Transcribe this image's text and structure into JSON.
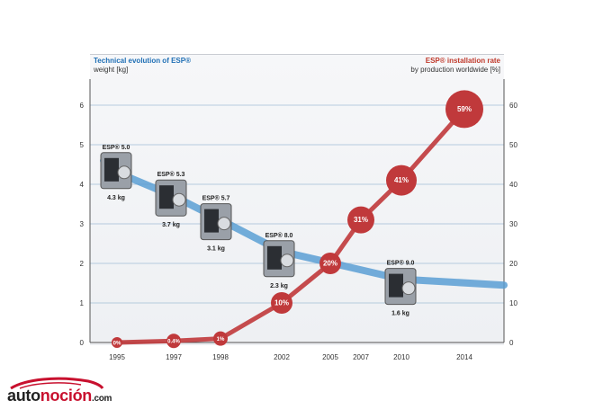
{
  "chart_data": {
    "type": "line",
    "title_left": "Technical evolution of ESP®",
    "ylabel_left": "weight [kg]",
    "title_right": "ESP® installation rate",
    "ylabel_right": "by production worldwide [%]",
    "x": [
      "1995",
      "1997",
      "1998",
      "2002",
      "2005",
      "2007",
      "2010",
      "2014"
    ],
    "ylim_left": [
      0,
      6
    ],
    "yticks_left": [
      "0",
      "1",
      "2",
      "3",
      "4",
      "5",
      "6"
    ],
    "ylim_right": [
      0,
      60
    ],
    "yticks_right": [
      "0",
      "10",
      "20",
      "30",
      "40",
      "50",
      "60"
    ],
    "grid": true,
    "series": [
      {
        "name": "ESP® installation rate",
        "axis": "right",
        "color": "#c0393b",
        "points": [
          {
            "x": "1995",
            "y": 0,
            "label": "0%"
          },
          {
            "x": "1997",
            "y": 0.4,
            "label": "0.4%"
          },
          {
            "x": "1998",
            "y": 1,
            "label": "1%"
          },
          {
            "x": "2002",
            "y": 10,
            "label": "10%"
          },
          {
            "x": "2005",
            "y": 20,
            "label": "20%"
          },
          {
            "x": "2007",
            "y": 31,
            "label": "31%"
          },
          {
            "x": "2010",
            "y": 41,
            "label": "41%"
          },
          {
            "x": "2014",
            "y": 59,
            "label": "59%"
          }
        ]
      },
      {
        "name": "ESP weight",
        "axis": "left",
        "color": "#5b9fd4",
        "points": [
          {
            "x": "1995",
            "y": 4.3,
            "model": "ESP® 5.0",
            "label": "4.3 kg"
          },
          {
            "x": "1997",
            "y": 3.7,
            "model": "ESP® 5.3",
            "label": "3.7 kg"
          },
          {
            "x": "1998",
            "y": 3.1,
            "model": "ESP® 5.7",
            "label": "3.1 kg"
          },
          {
            "x": "2002",
            "y": 2.3,
            "model": "ESP® 8.0",
            "label": "2.3 kg"
          },
          {
            "x": "2010",
            "y": 1.6,
            "model": "ESP® 9.0",
            "label": "1.6 kg"
          }
        ]
      }
    ]
  },
  "logo": {
    "part1": "auto",
    "part2": "noción",
    "part3": ".com"
  }
}
